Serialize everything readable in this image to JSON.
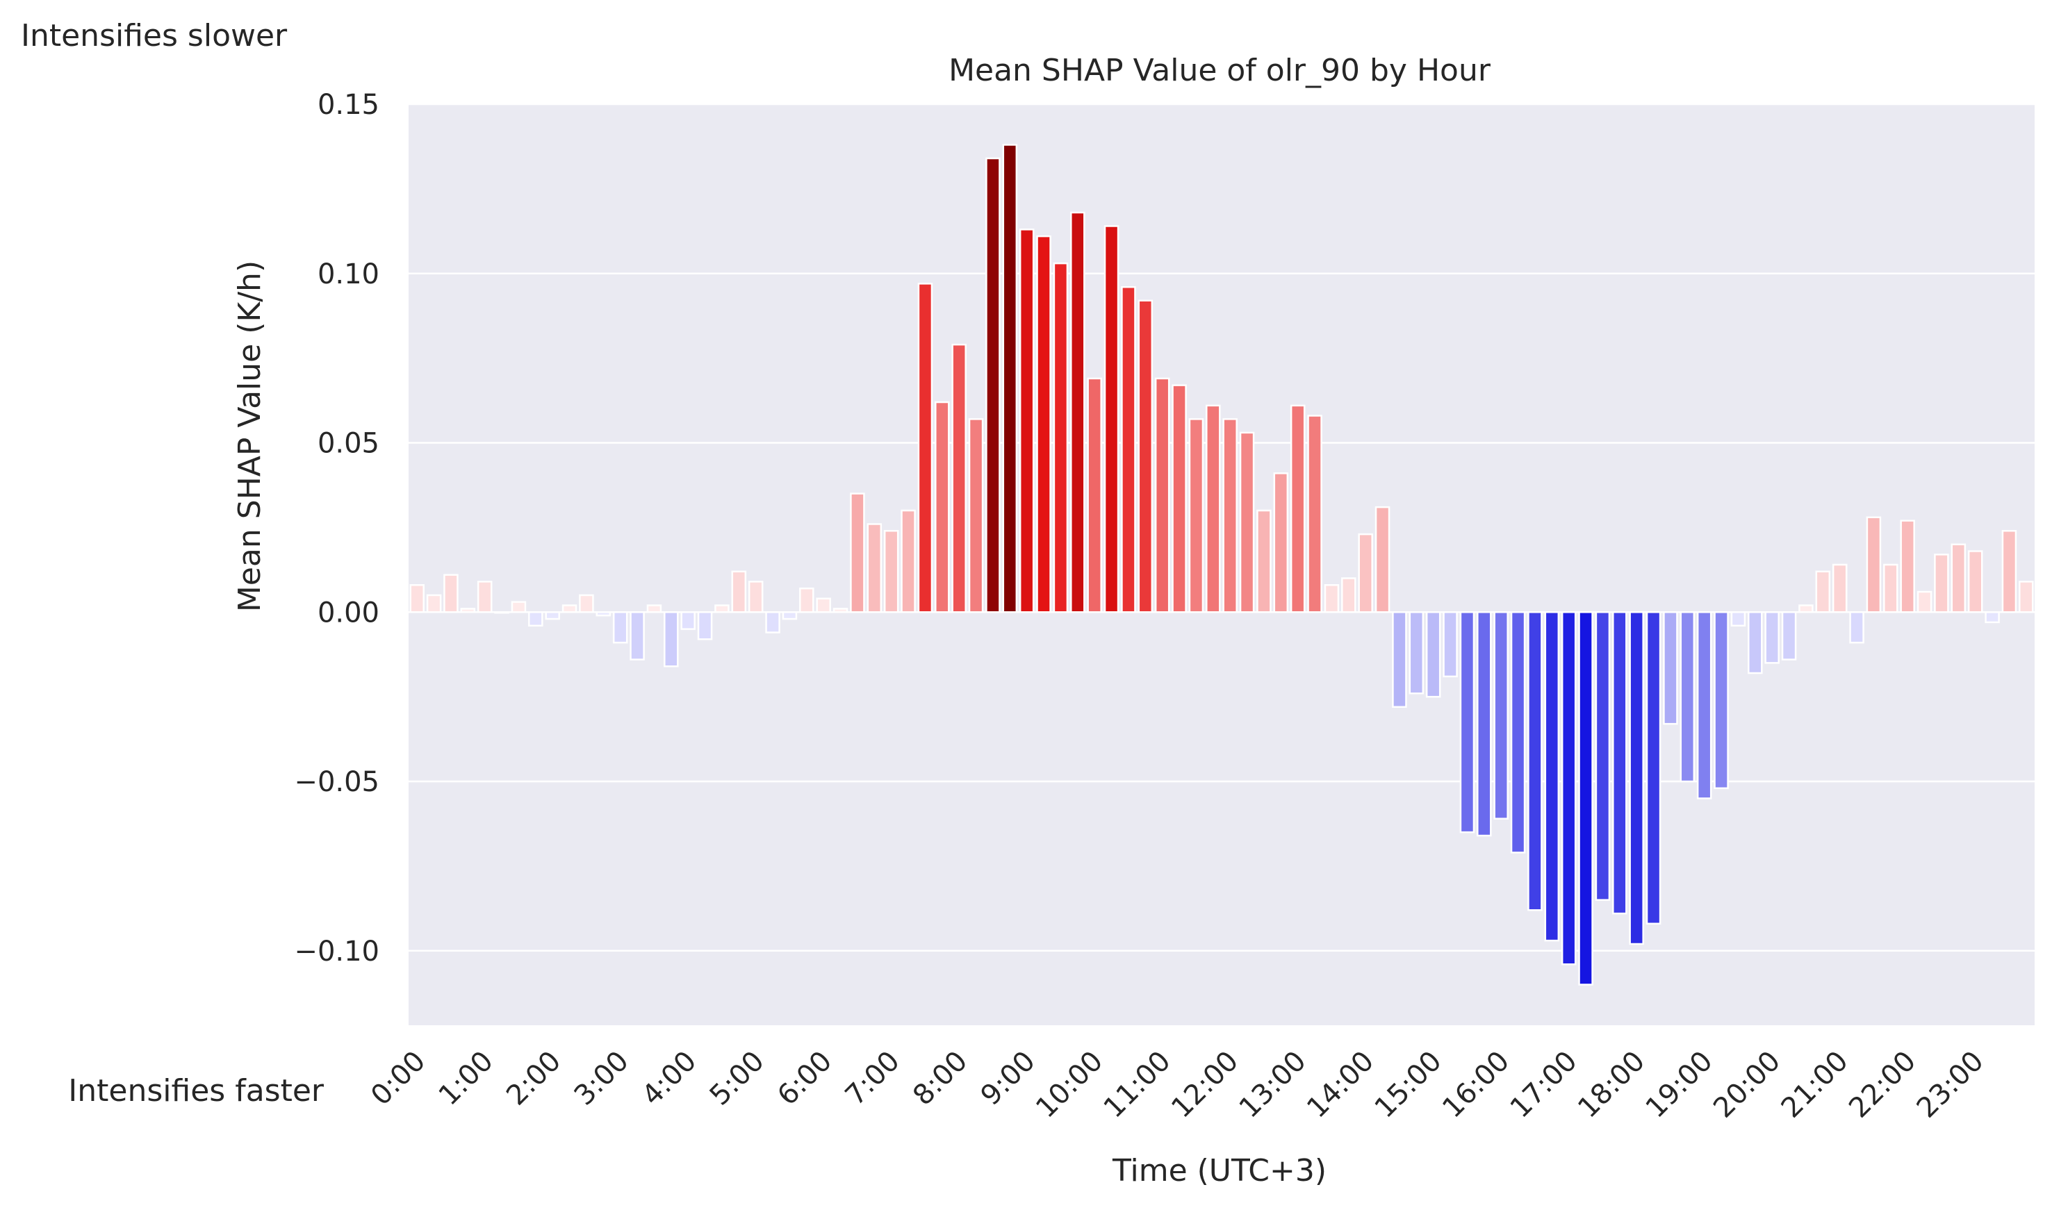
{
  "chart_data": {
    "type": "bar",
    "title": "Mean SHAP Value of olr_90 by Hour",
    "xlabel": "Time (UTC+3)",
    "ylabel": "Mean SHAP Value (K/h)",
    "annotations": {
      "top_left": "Intensifies slower",
      "bottom_left": "Intensifies faster"
    },
    "ylim": [
      -0.122,
      0.15
    ],
    "yticks": [
      {
        "value": 0.15,
        "label": "0.15"
      },
      {
        "value": 0.1,
        "label": "0.10"
      },
      {
        "value": 0.05,
        "label": "0.05"
      },
      {
        "value": 0.0,
        "label": "0.00"
      },
      {
        "value": -0.05,
        "label": "−0.05"
      },
      {
        "value": -0.1,
        "label": "−0.10"
      }
    ],
    "xtick_labels": [
      "0:00",
      "1:00",
      "2:00",
      "3:00",
      "4:00",
      "5:00",
      "6:00",
      "7:00",
      "8:00",
      "9:00",
      "10:00",
      "11:00",
      "12:00",
      "13:00",
      "14:00",
      "15:00",
      "16:00",
      "17:00",
      "18:00",
      "19:00",
      "20:00",
      "21:00",
      "22:00",
      "23:00"
    ],
    "bars_per_hour": 4,
    "grid": true,
    "colormap": "seismic (blue negative, red positive)",
    "colors": {
      "background": "#EAEAF2",
      "grid": "#FFFFFF",
      "text": "#262626"
    },
    "values": [
      0.008,
      0.005,
      0.011,
      0.001,
      0.009,
      0.0,
      0.003,
      -0.004,
      -0.002,
      0.002,
      0.005,
      -0.001,
      -0.009,
      -0.014,
      0.002,
      -0.016,
      -0.005,
      -0.008,
      0.002,
      0.012,
      0.009,
      -0.006,
      -0.002,
      0.007,
      0.004,
      0.001,
      0.035,
      0.026,
      0.024,
      0.03,
      0.097,
      0.062,
      0.079,
      0.057,
      0.134,
      0.138,
      0.113,
      0.111,
      0.103,
      0.118,
      0.069,
      0.114,
      0.096,
      0.092,
      0.069,
      0.067,
      0.057,
      0.061,
      0.057,
      0.053,
      0.03,
      0.041,
      0.061,
      0.058,
      0.008,
      0.01,
      0.023,
      0.031,
      -0.028,
      -0.024,
      -0.025,
      -0.019,
      -0.065,
      -0.066,
      -0.061,
      -0.071,
      -0.088,
      -0.097,
      -0.104,
      -0.11,
      -0.085,
      -0.089,
      -0.098,
      -0.092,
      -0.033,
      -0.05,
      -0.055,
      -0.052,
      -0.004,
      -0.018,
      -0.015,
      -0.014,
      0.002,
      0.012,
      0.014,
      -0.009,
      0.028,
      0.014,
      0.027,
      0.006,
      0.017,
      0.02,
      0.018,
      -0.003,
      0.024,
      0.009
    ]
  }
}
